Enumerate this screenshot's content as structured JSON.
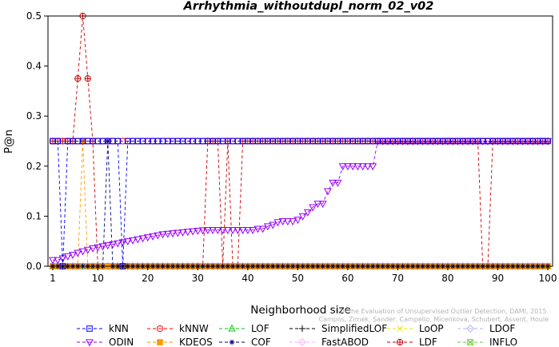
{
  "chart_data": {
    "type": "line",
    "title": "Arrhythmia_withoutdupl_norm_02_v02",
    "xlabel": "Neighborhood size",
    "ylabel": "P@n",
    "xlim": [
      1,
      100
    ],
    "ylim": [
      0,
      0.5
    ],
    "xticks": [
      1,
      10,
      20,
      30,
      40,
      50,
      60,
      70,
      80,
      90,
      100
    ],
    "xtick_labels": [
      "1",
      "10",
      "20",
      "30",
      "40",
      "50",
      "60",
      "70",
      "80",
      "90",
      "100"
    ],
    "yticks": [
      0.0,
      0.1,
      0.2,
      0.3,
      0.4,
      0.5
    ],
    "ytick_labels": [
      "0.0",
      "0.1",
      "0.2",
      "0.3",
      "0.4",
      "0.5"
    ],
    "grid": false,
    "legend_position": "bottom",
    "watermark": [
      "On the Evaluation of Unsupervised Outlier Detection, DAMI, 2015.",
      "Campos, Zimek, Sander, Campello, Micenkova, Schubert, Assent, Houle"
    ],
    "series": [
      {
        "name": "kNN",
        "color": "#0000ff",
        "marker": "square",
        "points": [
          [
            1,
            0.25
          ],
          [
            2,
            0.25
          ],
          [
            3,
            0
          ],
          [
            4,
            0.25
          ],
          [
            14,
            0.25
          ],
          [
            15,
            0
          ],
          [
            16,
            0.25
          ],
          [
            100,
            0.25
          ]
        ]
      },
      {
        "name": "kNNW",
        "color": "#ff0000",
        "marker": "circle",
        "points": [
          [
            1,
            0.25
          ],
          [
            2,
            0.25
          ],
          [
            3,
            0.25
          ],
          [
            100,
            0.25
          ]
        ]
      },
      {
        "name": "LOF",
        "color": "#00cc00",
        "marker": "triangle-up",
        "points": [
          [
            1,
            0
          ],
          [
            100,
            0
          ]
        ]
      },
      {
        "name": "SimplifiedLOF",
        "color": "#000000",
        "marker": "plus",
        "points": [
          [
            1,
            0
          ],
          [
            100,
            0
          ]
        ]
      },
      {
        "name": "LoOP",
        "color": "#e6e600",
        "marker": "x",
        "points": [
          [
            1,
            0
          ],
          [
            100,
            0
          ]
        ]
      },
      {
        "name": "LDOF",
        "color": "#b0b0ff",
        "marker": "diamond",
        "points": [
          [
            1,
            0
          ],
          [
            100,
            0
          ]
        ]
      },
      {
        "name": "ODIN",
        "color": "#9900ff",
        "marker": "triangle-down",
        "points": [
          [
            1,
            0.0125
          ],
          [
            2,
            0.0125
          ],
          [
            3,
            0.016
          ],
          [
            4,
            0.02
          ],
          [
            5,
            0.023
          ],
          [
            6,
            0.027
          ],
          [
            7,
            0.03
          ],
          [
            8,
            0.033
          ],
          [
            9,
            0.036
          ],
          [
            10,
            0.038
          ],
          [
            11,
            0.04
          ],
          [
            12,
            0.042
          ],
          [
            13,
            0.044
          ],
          [
            14,
            0.046
          ],
          [
            15,
            0.048
          ],
          [
            16,
            0.05
          ],
          [
            17,
            0.052
          ],
          [
            18,
            0.054
          ],
          [
            19,
            0.056
          ],
          [
            20,
            0.058
          ],
          [
            21,
            0.06
          ],
          [
            22,
            0.062
          ],
          [
            23,
            0.064
          ],
          [
            24,
            0.065
          ],
          [
            25,
            0.066
          ],
          [
            26,
            0.067
          ],
          [
            27,
            0.068
          ],
          [
            28,
            0.069
          ],
          [
            29,
            0.07
          ],
          [
            30,
            0.071
          ],
          [
            31,
            0.072
          ],
          [
            32,
            0.0725
          ],
          [
            33,
            0.0725
          ],
          [
            34,
            0.0725
          ],
          [
            35,
            0.0725
          ],
          [
            36,
            0.0725
          ],
          [
            37,
            0.0725
          ],
          [
            38,
            0.0725
          ],
          [
            39,
            0.0725
          ],
          [
            40,
            0.0725
          ],
          [
            41,
            0.0725
          ],
          [
            42,
            0.075
          ],
          [
            43,
            0.075
          ],
          [
            44,
            0.08
          ],
          [
            45,
            0.083
          ],
          [
            46,
            0.088
          ],
          [
            47,
            0.09
          ],
          [
            48,
            0.09
          ],
          [
            49,
            0.09
          ],
          [
            50,
            0.093
          ],
          [
            51,
            0.1
          ],
          [
            52,
            0.108
          ],
          [
            53,
            0.118
          ],
          [
            54,
            0.125
          ],
          [
            55,
            0.125
          ],
          [
            56,
            0.15
          ],
          [
            57,
            0.167
          ],
          [
            58,
            0.167
          ],
          [
            59,
            0.2
          ],
          [
            60,
            0.2
          ],
          [
            61,
            0.2
          ],
          [
            62,
            0.2
          ],
          [
            63,
            0.2
          ],
          [
            64,
            0.2
          ],
          [
            65,
            0.2
          ],
          [
            66,
            0.25
          ],
          [
            67,
            0.25
          ],
          [
            68,
            0.25
          ],
          [
            69,
            0.25
          ],
          [
            70,
            0.25
          ],
          [
            71,
            0.25
          ],
          [
            72,
            0.25
          ],
          [
            73,
            0.25
          ],
          [
            74,
            0.25
          ],
          [
            75,
            0.25
          ],
          [
            76,
            0.25
          ],
          [
            77,
            0.25
          ],
          [
            78,
            0.25
          ],
          [
            79,
            0.25
          ],
          [
            80,
            0.25
          ],
          [
            81,
            0.25
          ],
          [
            82,
            0.25
          ],
          [
            83,
            0.25
          ],
          [
            84,
            0.25
          ],
          [
            85,
            0.25
          ],
          [
            86,
            0.25
          ],
          [
            87,
            0.25
          ],
          [
            88,
            0.25
          ],
          [
            89,
            0.25
          ],
          [
            90,
            0.25
          ],
          [
            91,
            0.25
          ],
          [
            92,
            0.25
          ],
          [
            93,
            0.25
          ],
          [
            94,
            0.25
          ],
          [
            95,
            0.25
          ],
          [
            96,
            0.25
          ],
          [
            97,
            0.25
          ],
          [
            98,
            0.25
          ],
          [
            99,
            0.25
          ],
          [
            100,
            0.25
          ]
        ]
      },
      {
        "name": "KDEOS",
        "color": "#ff9900",
        "marker": "square-filled",
        "points": [
          [
            1,
            0
          ],
          [
            6,
            0
          ],
          [
            7,
            0.25
          ],
          [
            8,
            0
          ],
          [
            100,
            0
          ]
        ]
      },
      {
        "name": "COF",
        "color": "#000080",
        "marker": "asterisk",
        "points": [
          [
            1,
            0
          ],
          [
            10,
            0
          ],
          [
            11,
            0
          ],
          [
            12,
            0.25
          ],
          [
            13,
            0
          ],
          [
            100,
            0
          ]
        ]
      },
      {
        "name": "FastABOD",
        "color": "#ffaaff",
        "marker": "diamond",
        "points": [
          [
            1,
            0
          ],
          [
            100,
            0
          ]
        ]
      },
      {
        "name": "LDF",
        "color": "#cc0000",
        "marker": "circle-plus",
        "points": [
          [
            1,
            0.25
          ],
          [
            4,
            0.25
          ],
          [
            5,
            0.25
          ],
          [
            6,
            0.375
          ],
          [
            7,
            0.5
          ],
          [
            8,
            0.375
          ],
          [
            9,
            0.25
          ],
          [
            10,
            0
          ],
          [
            11,
            0
          ],
          [
            12,
            0
          ],
          [
            13,
            0
          ],
          [
            14,
            0
          ],
          [
            15,
            0
          ],
          [
            30,
            0
          ],
          [
            31,
            0
          ],
          [
            32,
            0.25
          ],
          [
            34,
            0.25
          ],
          [
            35,
            0
          ],
          [
            36,
            0.25
          ],
          [
            37,
            0
          ],
          [
            38,
            0
          ],
          [
            39,
            0.25
          ],
          [
            86,
            0.25
          ],
          [
            87,
            0
          ],
          [
            88,
            0
          ],
          [
            89,
            0.25
          ],
          [
            100,
            0.25
          ]
        ]
      },
      {
        "name": "INFLO",
        "color": "#66cc33",
        "marker": "square-x",
        "points": [
          [
            1,
            0
          ],
          [
            100,
            0
          ]
        ]
      }
    ]
  }
}
